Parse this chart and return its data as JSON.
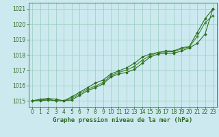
{
  "x": [
    0,
    1,
    2,
    3,
    4,
    5,
    6,
    7,
    8,
    9,
    10,
    11,
    12,
    13,
    14,
    15,
    16,
    17,
    18,
    19,
    20,
    21,
    22,
    23
  ],
  "line1": [
    1015.0,
    1015.1,
    1015.15,
    1015.1,
    1015.0,
    1015.25,
    1015.55,
    1015.85,
    1016.15,
    1016.35,
    1016.75,
    1016.95,
    1017.15,
    1017.45,
    1017.85,
    1018.05,
    1018.15,
    1018.25,
    1018.25,
    1018.45,
    1018.55,
    1019.45,
    1020.35,
    1021.0
  ],
  "line2": [
    1015.0,
    1015.05,
    1015.1,
    1015.0,
    1015.0,
    1015.15,
    1015.45,
    1015.75,
    1015.95,
    1016.2,
    1016.65,
    1016.85,
    1017.0,
    1017.25,
    1017.65,
    1017.95,
    1018.15,
    1018.2,
    1018.2,
    1018.4,
    1018.5,
    1019.2,
    1020.1,
    1020.55
  ],
  "line3": [
    1015.0,
    1015.0,
    1015.05,
    1015.0,
    1015.0,
    1015.05,
    1015.35,
    1015.65,
    1015.85,
    1016.1,
    1016.55,
    1016.75,
    1016.85,
    1017.05,
    1017.45,
    1017.85,
    1018.05,
    1018.1,
    1018.1,
    1018.25,
    1018.45,
    1018.75,
    1019.35,
    1021.0
  ],
  "line_color": "#2d6b1e",
  "line_color2": "#3d8a28",
  "bg_color": "#cce9f0",
  "grid_color": "#99ccbb",
  "xlabel": "Graphe pression niveau de la mer (hPa)",
  "ylim_min": 1014.6,
  "ylim_max": 1021.4,
  "yticks": [
    1015,
    1016,
    1017,
    1018,
    1019,
    1020,
    1021
  ],
  "xticks": [
    0,
    1,
    2,
    3,
    4,
    5,
    6,
    7,
    8,
    9,
    10,
    11,
    12,
    13,
    14,
    15,
    16,
    17,
    18,
    19,
    20,
    21,
    22,
    23
  ],
  "marker": "D",
  "markersize": 1.8,
  "linewidth": 0.8,
  "xlabel_fontsize": 6.5,
  "tick_fontsize": 5.5
}
